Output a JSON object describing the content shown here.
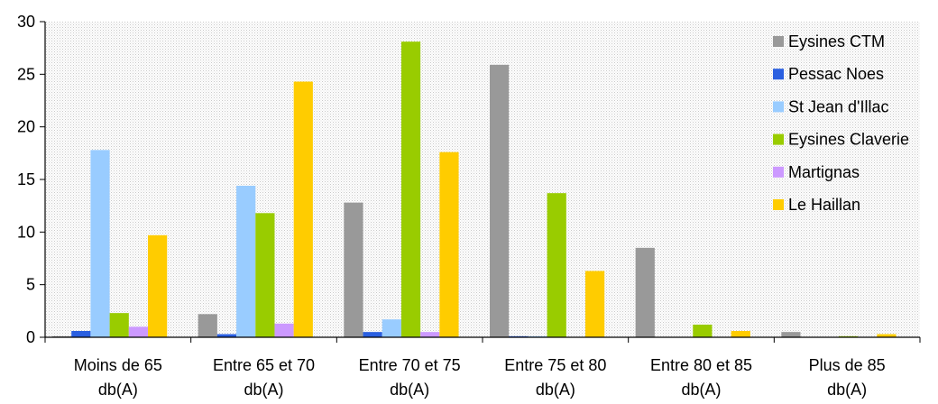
{
  "chart_data": {
    "type": "bar",
    "title": "",
    "xlabel": "",
    "ylabel": "",
    "ylim": [
      0,
      30
    ],
    "yticks": [
      0,
      5,
      10,
      15,
      20,
      25,
      30
    ],
    "grid": false,
    "plot_background": "dotted light gray",
    "legend_position": "right",
    "categories": [
      [
        "Moins de 65",
        "db(A)"
      ],
      [
        "Entre 65 et 70",
        "db(A)"
      ],
      [
        "Entre 70 et 75",
        "db(A)"
      ],
      [
        "Entre 75 et 80",
        "db(A)"
      ],
      [
        "Entre 80 et 85",
        "db(A)"
      ],
      [
        "Plus de 85",
        "db(A)"
      ]
    ],
    "series": [
      {
        "name": "Eysines CTM",
        "color": "#999999",
        "values": [
          0.1,
          2.2,
          12.8,
          25.9,
          8.5,
          0.5
        ]
      },
      {
        "name": "Pessac Noes",
        "color": "#2a5fe0",
        "values": [
          0.6,
          0.3,
          0.5,
          0.1,
          0,
          0
        ]
      },
      {
        "name": "St Jean d'Illac",
        "color": "#99ccff",
        "values": [
          17.8,
          14.4,
          1.7,
          0.1,
          0,
          0
        ]
      },
      {
        "name": "Eysines Claverie",
        "color": "#99cc00",
        "values": [
          2.3,
          11.8,
          28.1,
          13.7,
          1.2,
          0.1
        ]
      },
      {
        "name": "Martignas",
        "color": "#cc99ff",
        "values": [
          1.0,
          1.3,
          0.5,
          0,
          0,
          0
        ]
      },
      {
        "name": "Le Haillan",
        "color": "#ffcc00",
        "values": [
          9.7,
          24.3,
          17.6,
          6.3,
          0.6,
          0.3
        ]
      }
    ]
  }
}
